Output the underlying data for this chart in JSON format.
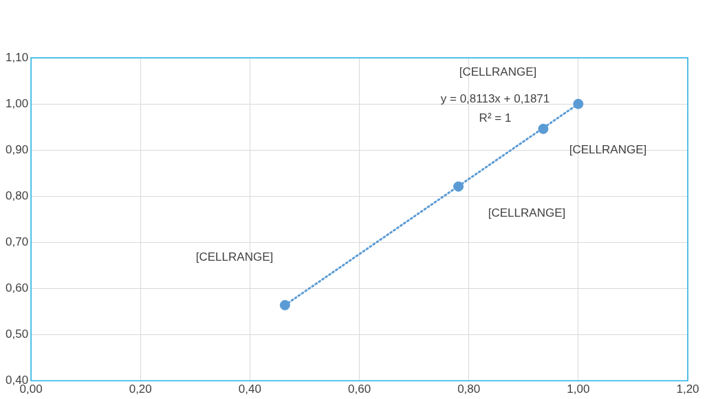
{
  "chart_data": {
    "type": "scatter",
    "marker": "circle",
    "grid": true,
    "legend": false,
    "xlim": [
      0,
      1.2
    ],
    "ylim": [
      0.4,
      1.1
    ],
    "xticks": [
      {
        "value": 0,
        "label": "0,00"
      },
      {
        "value": 0.2,
        "label": "0,20"
      },
      {
        "value": 0.4,
        "label": "0,40"
      },
      {
        "value": 0.6,
        "label": "0,60"
      },
      {
        "value": 0.8,
        "label": "0,80"
      },
      {
        "value": 1.0,
        "label": "1,00"
      },
      {
        "value": 1.2,
        "label": "1,20"
      }
    ],
    "yticks": [
      {
        "value": 0.4,
        "label": "0,40"
      },
      {
        "value": 0.5,
        "label": "0,50"
      },
      {
        "value": 0.6,
        "label": "0,60"
      },
      {
        "value": 0.7,
        "label": "0,70"
      },
      {
        "value": 0.8,
        "label": "0,80"
      },
      {
        "value": 0.9,
        "label": "0,90"
      },
      {
        "value": 1.0,
        "label": "1,00"
      },
      {
        "value": 1.1,
        "label": "1,10"
      }
    ],
    "series": [
      {
        "type": "scatter",
        "color": "#5b9bd5",
        "x": [
          0.464,
          0.781,
          0.936,
          1.0
        ],
        "values": [
          0.564,
          0.821,
          0.946,
          1.0
        ]
      },
      {
        "type": "line",
        "color": "#5b9bd5",
        "line_style": "dotted",
        "marker": "none",
        "x": [
          0.464,
          1.0
        ],
        "values": [
          0.564,
          1.0
        ]
      }
    ],
    "annotations": [
      "[CELLRANGE]",
      "[CELLRANGE]",
      "[CELLRANGE]",
      "[CELLRANGE]",
      "y = 0,8113x + 0,1871",
      "R² = 1"
    ]
  }
}
